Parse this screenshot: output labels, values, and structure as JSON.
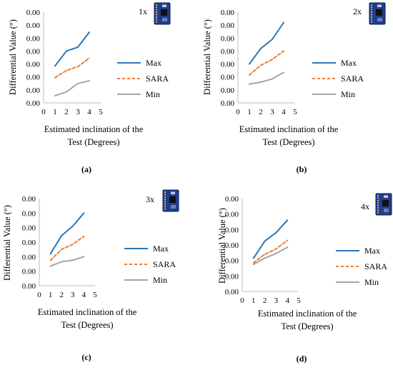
{
  "chart_data": [
    {
      "type": "line",
      "panel_label": "(a)",
      "multiplier": "1x",
      "ylabel": "Differential Value (°)",
      "xlabel": "Estimated inclination of the Test (Degrees)",
      "xlabel_lines": [
        "Estimated inclination of the",
        "Test (Degrees)"
      ],
      "x_ticks": [
        "0",
        "1",
        "2",
        "3",
        "4",
        "5"
      ],
      "y_ticks": [
        "0.00",
        "0.00",
        "0.00",
        "0.00",
        "0.00",
        "0.00",
        "0.00",
        "0.00"
      ],
      "xlim": [
        0,
        5
      ],
      "ylim": [
        0,
        7
      ],
      "legend_position": "right",
      "x": [
        1,
        2,
        3,
        4
      ],
      "series": [
        {
          "name": "Max",
          "color": "#2e75b6",
          "dash": "solid",
          "values": [
            2.85,
            4.0,
            4.3,
            5.45
          ]
        },
        {
          "name": "SARA",
          "color": "#ed7d31",
          "dash": "dashed",
          "values": [
            1.95,
            2.5,
            2.8,
            3.45
          ]
        },
        {
          "name": "Min",
          "color": "#a5a5a5",
          "dash": "solid",
          "values": [
            0.55,
            0.85,
            1.5,
            1.7
          ]
        }
      ]
    },
    {
      "type": "line",
      "panel_label": "(b)",
      "multiplier": "2x",
      "ylabel": "Differential Value (°)",
      "xlabel": "Estimated inclination of the Test (Degrees)",
      "xlabel_lines": [
        "Estimated inclination of the",
        "Test (Degrees)"
      ],
      "x_ticks": [
        "0",
        "1",
        "2",
        "3",
        "4",
        "5"
      ],
      "y_ticks": [
        "0.00",
        "0.00",
        "0.00",
        "0.00",
        "0.00",
        "0.00",
        "0.00",
        "0.00"
      ],
      "xlim": [
        0,
        5
      ],
      "ylim": [
        0,
        7
      ],
      "legend_position": "right",
      "x": [
        1,
        2,
        3,
        4
      ],
      "series": [
        {
          "name": "Max",
          "color": "#2e75b6",
          "dash": "solid",
          "values": [
            3.0,
            4.2,
            4.9,
            6.2
          ]
        },
        {
          "name": "SARA",
          "color": "#ed7d31",
          "dash": "dashed",
          "values": [
            2.15,
            2.9,
            3.35,
            4.0
          ]
        },
        {
          "name": "Min",
          "color": "#a5a5a5",
          "dash": "solid",
          "values": [
            1.45,
            1.6,
            1.85,
            2.35
          ]
        }
      ]
    },
    {
      "type": "line",
      "panel_label": "(c)",
      "multiplier": "3x",
      "ylabel": "Differential Value (°)",
      "xlabel": "Estimated inclination of the Test (Degrees)",
      "xlabel_lines": [
        "Estimated inclination of the",
        "Test (Degrees)"
      ],
      "x_ticks": [
        "0",
        "1",
        "2",
        "3",
        "4",
        "5"
      ],
      "y_ticks": [
        "0.00",
        "0.00",
        "0.00",
        "0.00",
        "0.00",
        "0.00",
        "0.00"
      ],
      "xlim": [
        0,
        5
      ],
      "ylim": [
        0,
        6
      ],
      "legend_position": "right",
      "x": [
        1,
        2,
        3,
        4
      ],
      "series": [
        {
          "name": "Max",
          "color": "#2e75b6",
          "dash": "solid",
          "values": [
            2.2,
            3.45,
            4.1,
            5.0
          ]
        },
        {
          "name": "SARA",
          "color": "#ed7d31",
          "dash": "dashed",
          "values": [
            1.75,
            2.5,
            2.85,
            3.4
          ]
        },
        {
          "name": "Min",
          "color": "#a5a5a5",
          "dash": "solid",
          "values": [
            1.35,
            1.65,
            1.75,
            2.0
          ]
        }
      ]
    },
    {
      "type": "line",
      "panel_label": "(d)",
      "multiplier": "4x",
      "ylabel": "Differential Value (°)",
      "xlabel": "Estimated inclination of the Test (Degrees)",
      "xlabel_lines": [
        "Estimated inclination of the",
        "Test (Degrees)"
      ],
      "x_ticks": [
        "0",
        "1",
        "2",
        "3",
        "4",
        "5"
      ],
      "y_ticks": [
        "0.00",
        "0.00",
        "0.00",
        "0.00",
        "0.00",
        "0.00",
        "0.00"
      ],
      "xlim": [
        0,
        5
      ],
      "ylim": [
        0,
        6
      ],
      "legend_position": "right",
      "x": [
        1,
        2,
        3,
        4
      ],
      "series": [
        {
          "name": "Max",
          "color": "#2e75b6",
          "dash": "solid",
          "values": [
            2.15,
            3.25,
            3.8,
            4.6
          ]
        },
        {
          "name": "SARA",
          "color": "#ed7d31",
          "dash": "dashed",
          "values": [
            1.85,
            2.4,
            2.75,
            3.3
          ]
        },
        {
          "name": "Min",
          "color": "#a5a5a5",
          "dash": "solid",
          "values": [
            1.75,
            2.15,
            2.45,
            2.85
          ]
        }
      ]
    }
  ],
  "icons": [
    "circuit-board-icon"
  ],
  "colors": {
    "board": "#1f3d8c",
    "board_dark": "#0d1e4f",
    "chip": "#111111",
    "pin": "#d9c27a"
  }
}
